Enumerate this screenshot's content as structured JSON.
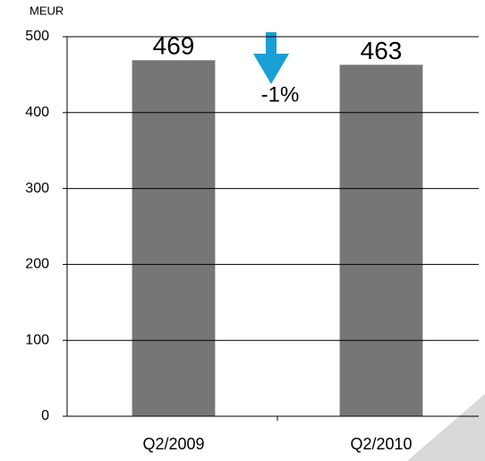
{
  "chart_data": {
    "type": "bar",
    "y_axis_label": "MEUR",
    "annotation": "-1%",
    "categories": [
      "Q2/2009",
      "Q2/2010"
    ],
    "values": [
      469,
      463
    ],
    "color": "#767676",
    "ylim": [
      0,
      500
    ],
    "yticks": [
      0,
      100,
      200,
      300,
      400,
      500
    ],
    "grid": true
  }
}
